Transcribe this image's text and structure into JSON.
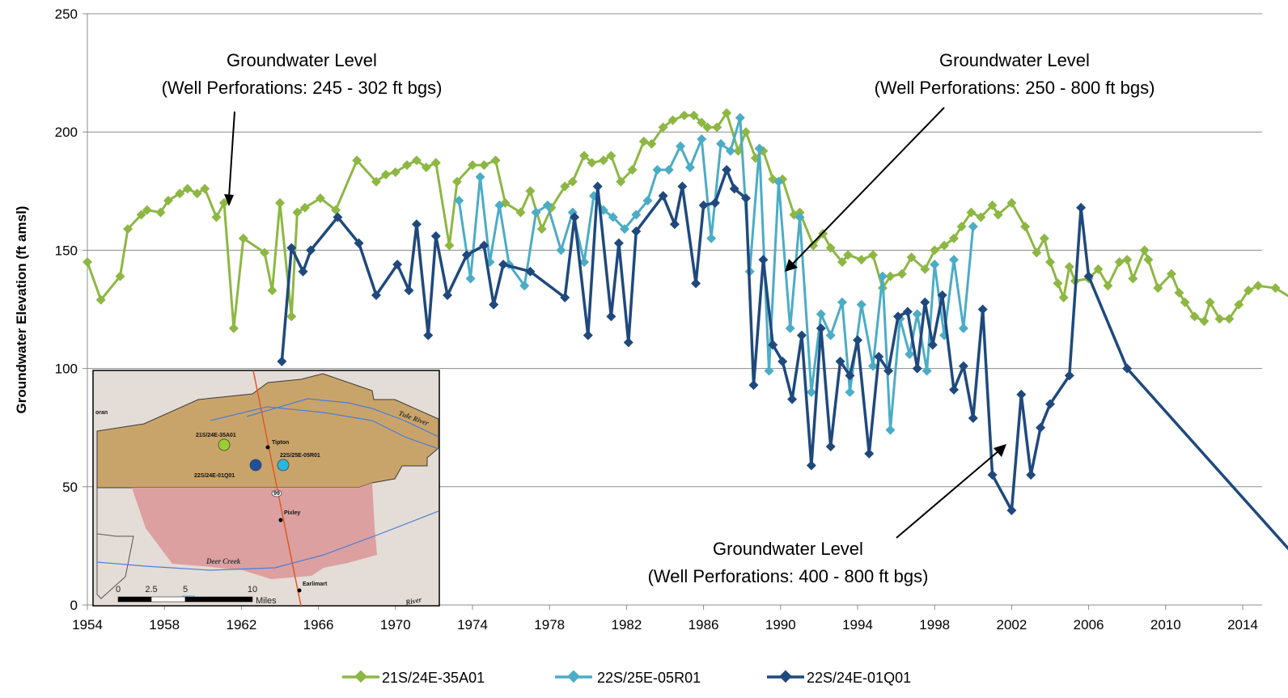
{
  "chart_data": {
    "type": "line",
    "title": "",
    "xlabel": "",
    "ylabel": "Groundwater Elevation (ft amsl)",
    "xlim": [
      1954,
      2015
    ],
    "ylim": [
      0,
      250
    ],
    "x_ticks": [
      "1954",
      "1958",
      "1962",
      "1966",
      "1970",
      "1974",
      "1978",
      "1982",
      "1986",
      "1990",
      "1994",
      "1998",
      "2002",
      "2006",
      "2010",
      "2014"
    ],
    "y_ticks": [
      "0",
      "50",
      "100",
      "150",
      "200",
      "250"
    ],
    "grid": true,
    "legend_position": "bottom",
    "series": [
      {
        "name": "21S/24E-35A01",
        "color": "#8db743",
        "points": [
          [
            1954.0,
            145
          ],
          [
            1954.7,
            129
          ],
          [
            1955.7,
            139
          ],
          [
            1956.1,
            159
          ],
          [
            1956.8,
            165
          ],
          [
            1957.1,
            167
          ],
          [
            1957.8,
            166
          ],
          [
            1958.2,
            171
          ],
          [
            1958.8,
            174
          ],
          [
            1959.2,
            176
          ],
          [
            1959.7,
            174
          ],
          [
            1960.1,
            176
          ],
          [
            1960.7,
            164
          ],
          [
            1961.1,
            170
          ],
          [
            1961.6,
            117
          ],
          [
            1962.1,
            155
          ],
          [
            1963.2,
            149
          ],
          [
            1963.6,
            133
          ],
          [
            1964.0,
            170
          ],
          [
            1964.6,
            122
          ],
          [
            1964.9,
            166
          ],
          [
            1965.3,
            168
          ],
          [
            1966.1,
            172
          ],
          [
            1966.9,
            167
          ],
          [
            1968.0,
            188
          ],
          [
            1969.0,
            179
          ],
          [
            1969.5,
            182
          ],
          [
            1970.0,
            183
          ],
          [
            1970.6,
            186
          ],
          [
            1971.1,
            188
          ],
          [
            1971.6,
            185
          ],
          [
            1972.1,
            187
          ],
          [
            1972.8,
            152
          ],
          [
            1973.2,
            179
          ],
          [
            1974.0,
            186
          ],
          [
            1974.6,
            186
          ],
          [
            1975.2,
            188
          ],
          [
            1975.7,
            170
          ],
          [
            1976.5,
            166
          ],
          [
            1977.0,
            175
          ],
          [
            1977.6,
            159
          ],
          [
            1978.1,
            168
          ],
          [
            1978.8,
            177
          ],
          [
            1979.2,
            179
          ],
          [
            1979.8,
            190
          ],
          [
            1980.2,
            187
          ],
          [
            1980.8,
            188
          ],
          [
            1981.2,
            190
          ],
          [
            1981.7,
            179
          ],
          [
            1982.3,
            184
          ],
          [
            1982.9,
            196
          ],
          [
            1983.3,
            195
          ],
          [
            1983.9,
            202
          ],
          [
            1984.4,
            205
          ],
          [
            1985.0,
            207
          ],
          [
            1985.5,
            207
          ],
          [
            1985.9,
            204
          ],
          [
            1986.2,
            202
          ],
          [
            1986.7,
            202
          ],
          [
            1987.2,
            208
          ],
          [
            1987.8,
            192
          ],
          [
            1988.2,
            200
          ],
          [
            1988.7,
            189
          ],
          [
            1989.1,
            192
          ],
          [
            1989.6,
            180
          ],
          [
            1990.1,
            180
          ],
          [
            1990.7,
            165
          ],
          [
            1991.0,
            166
          ],
          [
            1991.7,
            152
          ],
          [
            1992.2,
            157
          ],
          [
            1992.6,
            151
          ],
          [
            1993.2,
            145
          ],
          [
            1993.5,
            148
          ],
          [
            1994.2,
            146
          ],
          [
            1994.8,
            148
          ],
          [
            1995.3,
            134
          ],
          [
            1995.7,
            139
          ],
          [
            1996.3,
            140
          ],
          [
            1996.8,
            147
          ],
          [
            1997.5,
            142
          ],
          [
            1998.0,
            150
          ],
          [
            1998.5,
            152
          ],
          [
            1999.0,
            155
          ],
          [
            1999.4,
            160
          ],
          [
            1999.9,
            166
          ],
          [
            2000.4,
            164
          ],
          [
            2001.0,
            169
          ],
          [
            2001.3,
            165
          ],
          [
            2002.0,
            170
          ],
          [
            2002.7,
            160
          ],
          [
            2003.3,
            149
          ],
          [
            2003.7,
            155
          ],
          [
            2004.0,
            145
          ],
          [
            2004.4,
            136
          ],
          [
            2004.7,
            130
          ],
          [
            2005.0,
            143
          ],
          [
            2005.3,
            137
          ],
          [
            2006.0,
            138
          ],
          [
            2006.5,
            142
          ],
          [
            2007.0,
            135
          ],
          [
            2007.6,
            145
          ],
          [
            2008.0,
            146
          ],
          [
            2008.3,
            138
          ],
          [
            2008.9,
            150
          ],
          [
            2009.1,
            146
          ],
          [
            2009.6,
            134
          ],
          [
            2010.3,
            140
          ],
          [
            2010.7,
            132
          ],
          [
            2011.0,
            128
          ],
          [
            2011.5,
            122
          ],
          [
            2012.0,
            120
          ],
          [
            2012.3,
            128
          ],
          [
            2012.8,
            121
          ],
          [
            2013.3,
            121
          ],
          [
            2013.8,
            127
          ],
          [
            2014.3,
            133
          ],
          [
            2014.8,
            135
          ],
          [
            2015.7,
            134
          ],
          [
            2016.9,
            128
          ]
        ]
      },
      {
        "name": "22S/25E-05R01",
        "color": "#4bacc6",
        "points": [
          [
            1973.3,
            171
          ],
          [
            1973.9,
            138
          ],
          [
            1974.4,
            181
          ],
          [
            1974.9,
            145
          ],
          [
            1975.4,
            169
          ],
          [
            1975.9,
            144
          ],
          [
            1976.7,
            135
          ],
          [
            1977.3,
            166
          ],
          [
            1977.9,
            169
          ],
          [
            1978.6,
            150
          ],
          [
            1979.2,
            166
          ],
          [
            1979.8,
            145
          ],
          [
            1980.3,
            173
          ],
          [
            1980.8,
            167
          ],
          [
            1981.3,
            164
          ],
          [
            1981.9,
            159
          ],
          [
            1982.5,
            165
          ],
          [
            1983.1,
            171
          ],
          [
            1983.6,
            184
          ],
          [
            1984.2,
            184
          ],
          [
            1984.8,
            194
          ],
          [
            1985.3,
            185
          ],
          [
            1985.9,
            197
          ],
          [
            1986.4,
            155
          ],
          [
            1986.9,
            195
          ],
          [
            1987.4,
            192
          ],
          [
            1987.9,
            206
          ],
          [
            1988.4,
            141
          ],
          [
            1988.9,
            193
          ],
          [
            1989.4,
            99
          ],
          [
            1989.9,
            179
          ],
          [
            1990.5,
            117
          ],
          [
            1991.0,
            164
          ],
          [
            1991.6,
            90
          ],
          [
            1992.1,
            123
          ],
          [
            1992.6,
            114
          ],
          [
            1993.2,
            128
          ],
          [
            1993.6,
            90
          ],
          [
            1994.2,
            127
          ],
          [
            1994.8,
            101
          ],
          [
            1995.3,
            139
          ],
          [
            1995.7,
            74
          ],
          [
            1996.2,
            121
          ],
          [
            1996.7,
            106
          ],
          [
            1997.1,
            123
          ],
          [
            1997.6,
            99
          ],
          [
            1998.0,
            144
          ],
          [
            1998.5,
            114
          ],
          [
            1999.0,
            146
          ],
          [
            1999.5,
            117
          ],
          [
            2000.0,
            160
          ]
        ]
      },
      {
        "name": "22S/24E-01Q01",
        "color": "#1f497d",
        "points": [
          [
            1964.1,
            103
          ],
          [
            1964.6,
            151
          ],
          [
            1965.2,
            141
          ],
          [
            1965.6,
            150
          ],
          [
            1967.0,
            164
          ],
          [
            1968.1,
            153
          ],
          [
            1969.0,
            131
          ],
          [
            1970.1,
            144
          ],
          [
            1970.7,
            133
          ],
          [
            1971.1,
            161
          ],
          [
            1971.7,
            114
          ],
          [
            1972.1,
            156
          ],
          [
            1972.7,
            131
          ],
          [
            1973.7,
            148
          ],
          [
            1974.6,
            152
          ],
          [
            1975.1,
            127
          ],
          [
            1975.6,
            144
          ],
          [
            1977.0,
            141
          ],
          [
            1978.8,
            130
          ],
          [
            1979.3,
            164
          ],
          [
            1980.0,
            114
          ],
          [
            1980.5,
            177
          ],
          [
            1981.2,
            122
          ],
          [
            1981.6,
            153
          ],
          [
            1982.1,
            111
          ],
          [
            1982.5,
            158
          ],
          [
            1983.9,
            173
          ],
          [
            1984.5,
            161
          ],
          [
            1984.9,
            177
          ],
          [
            1985.6,
            136
          ],
          [
            1986.0,
            169
          ],
          [
            1986.6,
            170
          ],
          [
            1987.2,
            184
          ],
          [
            1987.6,
            176
          ],
          [
            1988.2,
            172
          ],
          [
            1988.6,
            93
          ],
          [
            1989.1,
            146
          ],
          [
            1989.6,
            110
          ],
          [
            1990.1,
            103
          ],
          [
            1990.6,
            87
          ],
          [
            1991.1,
            114
          ],
          [
            1991.6,
            59
          ],
          [
            1992.1,
            117
          ],
          [
            1992.6,
            67
          ],
          [
            1993.1,
            103
          ],
          [
            1993.6,
            97
          ],
          [
            1994.0,
            112
          ],
          [
            1994.6,
            64
          ],
          [
            1995.1,
            105
          ],
          [
            1995.6,
            99
          ],
          [
            1996.1,
            122
          ],
          [
            1996.6,
            124
          ],
          [
            1997.1,
            100
          ],
          [
            1997.5,
            128
          ],
          [
            1997.9,
            110
          ],
          [
            1998.4,
            131
          ],
          [
            1999.0,
            91
          ],
          [
            1999.5,
            101
          ],
          [
            2000.0,
            79
          ],
          [
            2000.5,
            125
          ],
          [
            2001.0,
            55
          ],
          [
            2002.0,
            40
          ],
          [
            2002.5,
            89
          ],
          [
            2003.0,
            55
          ],
          [
            2003.5,
            75
          ],
          [
            2004.0,
            85
          ],
          [
            2005.0,
            97
          ],
          [
            2005.6,
            168
          ],
          [
            2006.0,
            139
          ],
          [
            2008.0,
            100
          ],
          [
            2016.9,
            19
          ]
        ]
      }
    ],
    "annotations": [
      {
        "line1": "Groundwater Level",
        "line2": "(Well Perforations: 245 - 302 ft bgs)"
      },
      {
        "line1": "Groundwater Level",
        "line2": "(Well Perforations: 250 - 800 ft bgs)"
      },
      {
        "line1": "Groundwater Level",
        "line2": "(Well Perforations: 400 - 800 ft bgs)"
      }
    ]
  },
  "inset_map": {
    "well_labels": [
      "21S/24E-35A01",
      "22S/25E-05R01",
      "22S/24E-01Q01"
    ],
    "well_colors": [
      "#9acd32",
      "#29b6e0",
      "#1f4fa0"
    ],
    "towns": [
      "Tipton",
      "Pixley",
      "Earlimart"
    ],
    "rivers": [
      "Tule River",
      "Deer Creek",
      "River"
    ],
    "partial_label": "oran",
    "highway": "99",
    "scale_ticks": [
      "0",
      "2.5",
      "5",
      "10"
    ],
    "scale_unit": "Miles"
  }
}
